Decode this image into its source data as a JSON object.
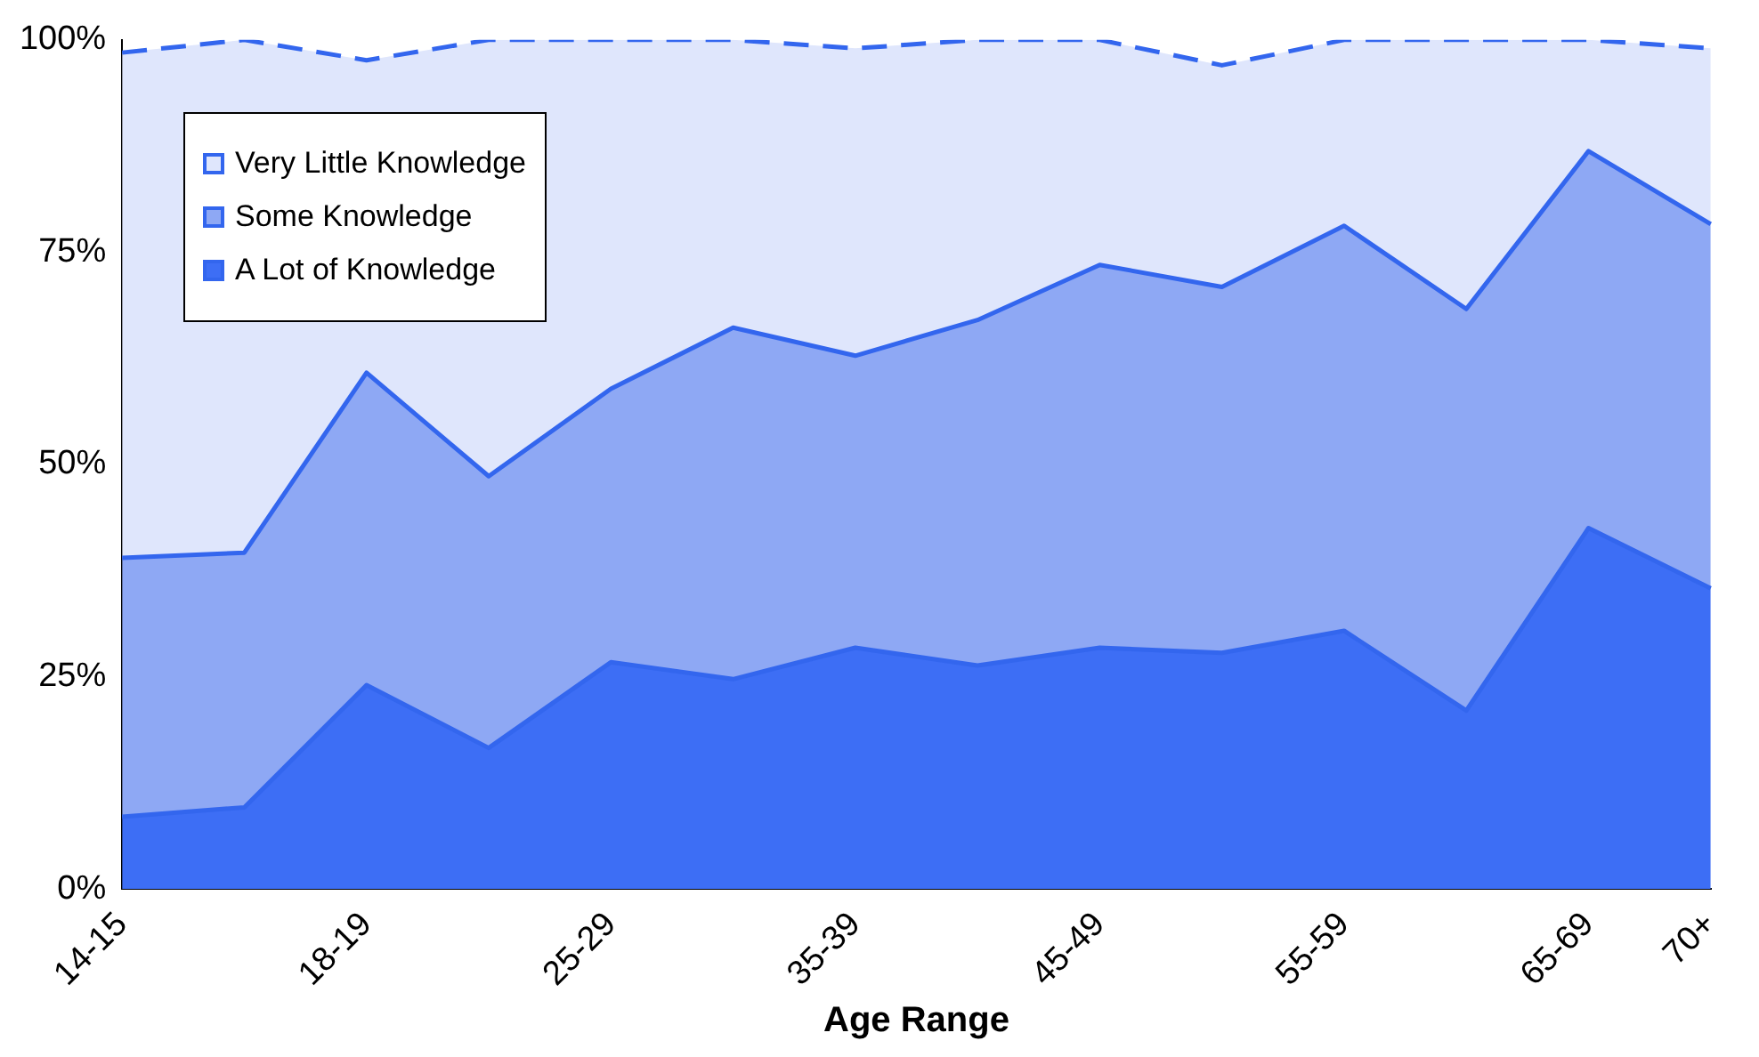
{
  "chart_data": {
    "type": "area",
    "stacked": true,
    "xlabel": "Age Range",
    "categories": [
      "14-15",
      null,
      "18-19",
      null,
      "25-29",
      null,
      "35-39",
      null,
      "45-49",
      null,
      "55-59",
      null,
      "65-69",
      "70+"
    ],
    "series": [
      {
        "name": "A Lot of Knowledge",
        "color": "#3d6ef5",
        "values": [
          8.5,
          9.6,
          24,
          16.6,
          26.7,
          24.7,
          28.4,
          26.3,
          28.4,
          27.8,
          30.4,
          21,
          42.5,
          35.4
        ]
      },
      {
        "name": "Some Knowledge",
        "color": "#8ea8f4",
        "values": [
          30.5,
          30,
          36.8,
          32,
          32.2,
          41.4,
          34.4,
          40.7,
          45.1,
          43.1,
          47.7,
          47.3,
          44.4,
          42.9
        ]
      },
      {
        "name": "Very Little Knowledge",
        "color": "#dfe6fc",
        "line_style": "dashed",
        "values": [
          59.5,
          60.4,
          36.8,
          51.4,
          41.1,
          33.9,
          36.2,
          33,
          26.5,
          26.1,
          21.9,
          31.7,
          13.1,
          20.7
        ]
      }
    ],
    "ylim": [
      0,
      100
    ],
    "yticks": [
      {
        "value": 0,
        "label": "0%"
      },
      {
        "value": 25,
        "label": "25%"
      },
      {
        "value": 50,
        "label": "50%"
      },
      {
        "value": 75,
        "label": "75%"
      },
      {
        "value": 100,
        "label": "100%"
      }
    ],
    "grid": false,
    "legend": "top left"
  }
}
